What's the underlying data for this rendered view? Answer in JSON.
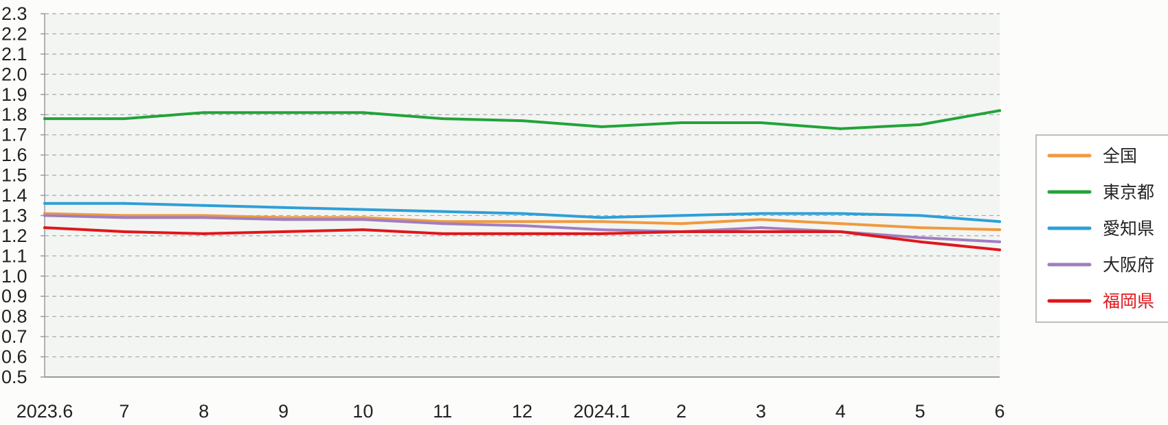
{
  "chart_data": {
    "type": "line",
    "title": "",
    "xlabel": "",
    "ylabel": "",
    "categories": [
      "2023.6",
      "7",
      "8",
      "9",
      "10",
      "11",
      "12",
      "2024.1",
      "2",
      "3",
      "4",
      "5",
      "6"
    ],
    "ylim": [
      0.5,
      2.3
    ],
    "yticks": [
      "0.5",
      "0.6",
      "0.7",
      "0.8",
      "0.9",
      "1.0",
      "1.1",
      "1.2",
      "1.3",
      "1.4",
      "1.5",
      "1.6",
      "1.7",
      "1.8",
      "1.9",
      "2.0",
      "2.1",
      "2.2",
      "2.3"
    ],
    "grid": "horizontal dashed",
    "legend_position": "right",
    "series": [
      {
        "name": "全国",
        "color": "#f09a3e",
        "label_color": "#222222",
        "values": [
          1.31,
          1.3,
          1.3,
          1.29,
          1.29,
          1.27,
          1.27,
          1.27,
          1.26,
          1.28,
          1.26,
          1.24,
          1.23
        ]
      },
      {
        "name": "東京都",
        "color": "#22a33a",
        "label_color": "#222222",
        "values": [
          1.78,
          1.78,
          1.81,
          1.81,
          1.81,
          1.78,
          1.77,
          1.74,
          1.76,
          1.76,
          1.73,
          1.75,
          1.82
        ]
      },
      {
        "name": "愛知県",
        "color": "#2e9fd8",
        "label_color": "#222222",
        "values": [
          1.36,
          1.36,
          1.35,
          1.34,
          1.33,
          1.32,
          1.31,
          1.29,
          1.3,
          1.31,
          1.31,
          1.3,
          1.27
        ]
      },
      {
        "name": "大阪府",
        "color": "#a07ec0",
        "label_color": "#222222",
        "values": [
          1.3,
          1.29,
          1.29,
          1.28,
          1.28,
          1.26,
          1.25,
          1.23,
          1.22,
          1.24,
          1.22,
          1.19,
          1.17
        ]
      },
      {
        "name": "福岡県",
        "color": "#e0161b",
        "label_color": "#e0161b",
        "values": [
          1.24,
          1.22,
          1.21,
          1.22,
          1.23,
          1.21,
          1.21,
          1.21,
          1.22,
          1.22,
          1.22,
          1.17,
          1.13
        ]
      }
    ]
  }
}
